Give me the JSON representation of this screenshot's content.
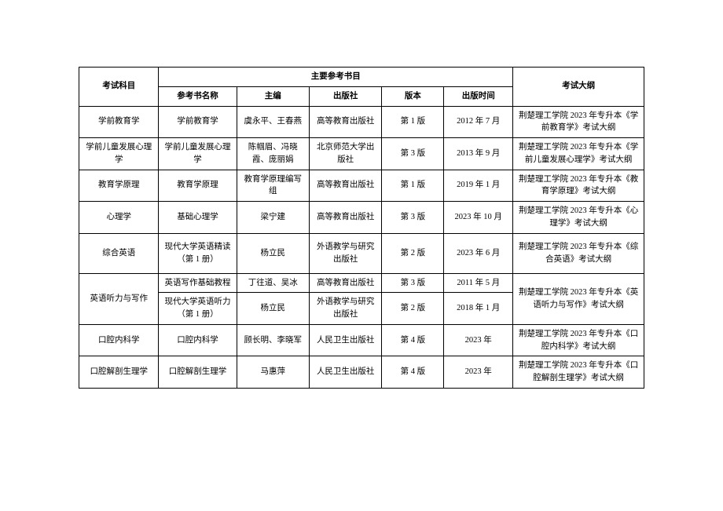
{
  "headers": {
    "subject": "考试科目",
    "main_book_header": "主要参考书目",
    "book_name": "参考书名称",
    "editor": "主编",
    "publisher": "出版社",
    "edition": "版本",
    "pub_date": "出版时间",
    "outline": "考试大纲"
  },
  "rows": [
    {
      "subject": "学前教育学",
      "book": "学前教育学",
      "editor": "虞永平、王春燕",
      "publisher": "高等教育出版社",
      "edition": "第 1 版",
      "date": "2012 年 7 月",
      "outline": "荆楚理工学院 2023 年专升本《学前教育学》考试大纲"
    },
    {
      "subject": "学前儿童发展心理学",
      "book": "学前儿童发展心理学",
      "editor": "陈帼眉、冯晓霞、庞丽娟",
      "publisher": "北京师范大学出版社",
      "edition": "第 3 版",
      "date": "2013 年 9 月",
      "outline": "荆楚理工学院 2023 年专升本《学前儿童发展心理学》考试大纲"
    },
    {
      "subject": "教育学原理",
      "book": "教育学原理",
      "editor": "教育学原理编写组",
      "publisher": "高等教育出版社",
      "edition": "第 1 版",
      "date": "2019 年 1 月",
      "outline": "荆楚理工学院 2023 年专升本《教育学原理》考试大纲"
    },
    {
      "subject": "心理学",
      "book": "基础心理学",
      "editor": "梁宁建",
      "publisher": "高等教育出版社",
      "edition": "第 3 版",
      "date": "2023 年 10 月",
      "outline": "荆楚理工学院 2023 年专升本《心理学》考试大纲"
    },
    {
      "subject": "综合英语",
      "book": "现代大学英语精读（第 1 册）",
      "editor": "杨立民",
      "publisher": "外语教学与研究出版社",
      "edition": "第 2 版",
      "date": "2023 年 6 月",
      "outline": "荆楚理工学院 2023 年专升本《综合英语》考试大纲"
    },
    {
      "subject": "英语听力与写作",
      "book": "英语写作基础教程",
      "editor": "丁往道、吴冰",
      "publisher": "高等教育出版社",
      "edition": "第 3 版",
      "date": "2011 年 5 月",
      "outline": "荆楚理工学院 2023 年专升本《英语听力与写作》考试大纲"
    },
    {
      "book": "现代大学英语听力（第 1 册）",
      "editor": "杨立民",
      "publisher": "外语教学与研究出版社",
      "edition": "第 2 版",
      "date": "2018 年 1 月"
    },
    {
      "subject": "口腔内科学",
      "book": "口腔内科学",
      "editor": "顾长明、李晓军",
      "publisher": "人民卫生出版社",
      "edition": "第 4 版",
      "date": "2023 年",
      "outline": "荆楚理工学院 2023 年专升本《口腔内科学》考试大纲"
    },
    {
      "subject": "口腔解剖生理学",
      "book": "口腔解剖生理学",
      "editor": "马惠萍",
      "publisher": "人民卫生出版社",
      "edition": "第 4 版",
      "date": "2023 年",
      "outline": "荆楚理工学院 2023 年专升本《口腔解剖生理学》考试大纲"
    }
  ]
}
